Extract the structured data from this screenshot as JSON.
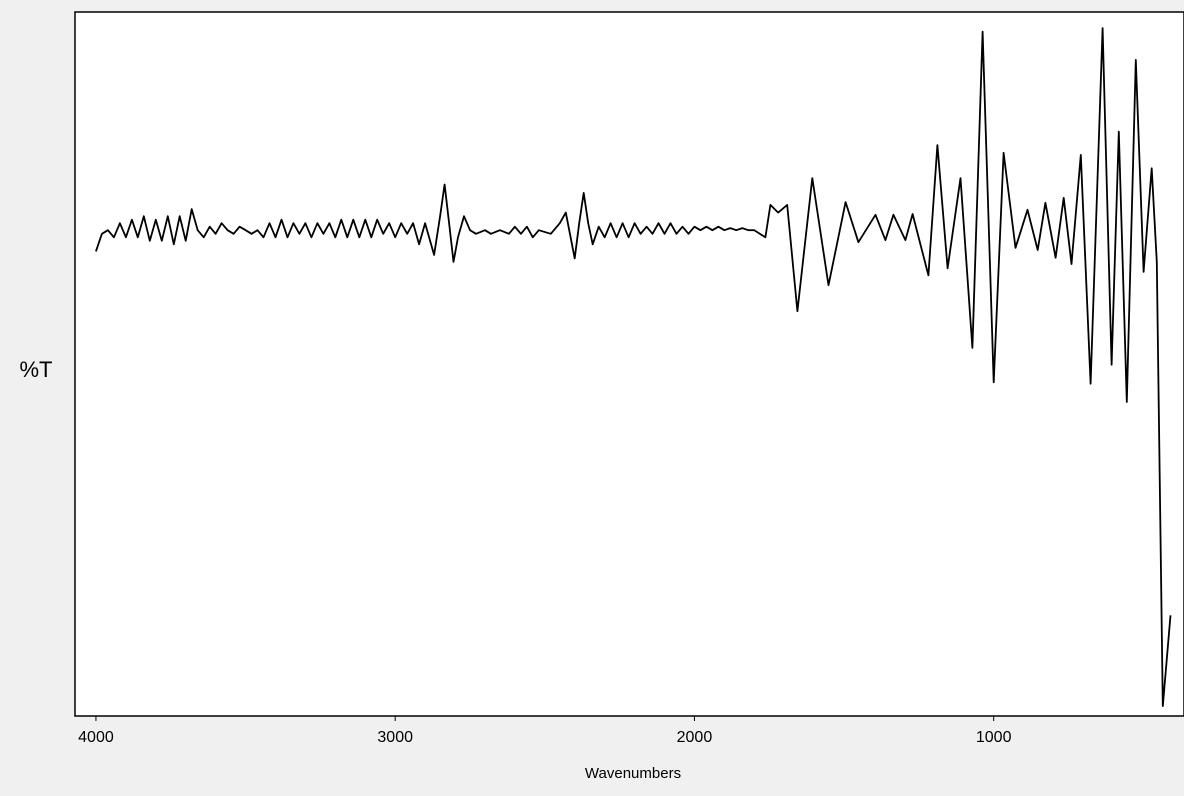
{
  "chart_data": {
    "type": "line",
    "x_label": "Wavenumbers",
    "y_label": "%T",
    "xlim": [
      4070,
      364
    ],
    "xticks": [
      4000,
      3000,
      2000,
      1000
    ],
    "ylim": [
      0,
      100
    ],
    "grid": false,
    "series": [
      {
        "name": null,
        "color": "#000000",
        "x": [
          4000,
          3980,
          3960,
          3940,
          3920,
          3900,
          3880,
          3860,
          3840,
          3820,
          3800,
          3780,
          3760,
          3740,
          3720,
          3700,
          3680,
          3660,
          3640,
          3620,
          3600,
          3580,
          3560,
          3540,
          3520,
          3500,
          3480,
          3460,
          3440,
          3420,
          3400,
          3380,
          3360,
          3340,
          3320,
          3300,
          3280,
          3260,
          3240,
          3220,
          3200,
          3180,
          3160,
          3140,
          3120,
          3100,
          3080,
          3060,
          3040,
          3020,
          3000,
          2980,
          2960,
          2940,
          2920,
          2900,
          2870,
          2850,
          2835,
          2820,
          2805,
          2790,
          2770,
          2750,
          2730,
          2700,
          2680,
          2650,
          2620,
          2600,
          2580,
          2560,
          2540,
          2520,
          2480,
          2450,
          2430,
          2400,
          2385,
          2370,
          2355,
          2340,
          2320,
          2300,
          2280,
          2260,
          2240,
          2220,
          2200,
          2180,
          2160,
          2140,
          2120,
          2100,
          2080,
          2060,
          2040,
          2020,
          2000,
          1980,
          1960,
          1940,
          1920,
          1900,
          1880,
          1860,
          1840,
          1820,
          1800,
          1763,
          1746,
          1720,
          1690,
          1656,
          1606,
          1552,
          1495,
          1452,
          1395,
          1362,
          1335,
          1295,
          1271,
          1218,
          1188,
          1154,
          1111,
          1071,
          1037,
          1000,
          967,
          927,
          887,
          853,
          827,
          793,
          766,
          740,
          709,
          676,
          636,
          606,
          582,
          555,
          525,
          499,
          472,
          455,
          435,
          409
        ],
        "values": [
          66,
          68.5,
          69,
          68,
          70,
          68,
          70.5,
          68,
          71,
          67.5,
          70.5,
          67.5,
          71,
          67,
          71,
          67.5,
          72,
          69,
          68,
          69.5,
          68.5,
          70,
          69,
          68.5,
          69.5,
          69,
          68.5,
          69,
          68,
          70,
          68,
          70.5,
          68,
          70,
          68.5,
          70,
          68,
          70,
          68.5,
          70,
          68,
          70.5,
          68,
          70.5,
          68,
          70.5,
          68,
          70.5,
          68.5,
          70,
          68,
          70,
          68.5,
          70,
          67,
          70,
          65.5,
          71,
          75.5,
          70,
          64.5,
          68,
          71,
          69,
          68.5,
          69,
          68.5,
          69,
          68.5,
          69.5,
          68.5,
          69.5,
          68,
          69,
          68.5,
          70,
          71.5,
          65,
          70,
          74.3,
          70,
          67,
          69.5,
          68,
          70,
          68,
          70,
          68,
          70,
          68.5,
          69.5,
          68.5,
          70,
          68.5,
          70,
          68.5,
          69.5,
          68.5,
          69.5,
          69,
          69.5,
          69,
          69.5,
          69,
          69.3,
          69,
          69.3,
          69,
          69,
          68,
          72.6,
          71.5,
          72.6,
          57.5,
          76.4,
          61.2,
          73,
          67.3,
          71.2,
          67.6,
          71.2,
          67.6,
          71.3,
          62.6,
          81.1,
          63.6,
          76.4,
          52.3,
          97.2,
          47.4,
          80,
          66.5,
          71.9,
          66.2,
          72.9,
          65.1,
          73.6,
          64.2,
          79.7,
          47.2,
          97.7,
          49.9,
          83,
          44.6,
          93.2,
          63.1,
          77.8,
          64.5,
          1.4,
          14.3
        ]
      }
    ]
  }
}
